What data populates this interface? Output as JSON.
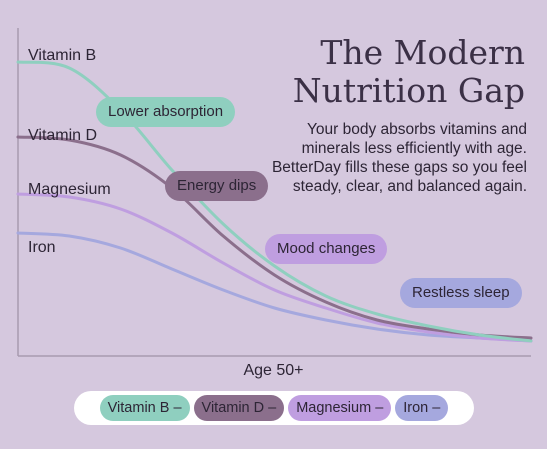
{
  "header": {
    "title_line1": "The Modern",
    "title_line2": "Nutrition Gap",
    "description": "Your body absorbs vitamins and minerals less efficiently with age. BetterDay fills these gaps so you feel steady, clear, and balanced again."
  },
  "colors": {
    "background": "#d5c8de",
    "vitamin_b": "#8fcfbf",
    "vitamin_d": "#8b6f8c",
    "magnesium": "#bf9ee0",
    "iron": "#a5a8de",
    "axis": "#a89aaf"
  },
  "annotations": [
    {
      "text": "Lower absorption",
      "color": "#8fcfbf"
    },
    {
      "text": "Energy dips",
      "color": "#8b6f8c"
    },
    {
      "text": "Mood changes",
      "color": "#bf9ee0"
    },
    {
      "text": "Restless sleep",
      "color": "#a5a8de"
    }
  ],
  "legend": [
    {
      "label": "Vitamin B –",
      "color": "#8fcfbf"
    },
    {
      "label": "Vitamin D –",
      "color": "#8b6f8c"
    },
    {
      "label": "Magnesium –",
      "color": "#bf9ee0"
    },
    {
      "label": "Iron –",
      "color": "#a5a8de"
    }
  ],
  "chart_data": {
    "type": "line",
    "title": "The Modern Nutrition Gap",
    "xlabel": "Age 50+",
    "ylabel": "",
    "grid": false,
    "legend_position": "bottom",
    "x": [
      0,
      0.1,
      0.2,
      0.3,
      0.4,
      0.5,
      0.6,
      0.7,
      0.8,
      0.9,
      1.0
    ],
    "ylim": [
      0,
      1
    ],
    "series": [
      {
        "name": "Vitamin B",
        "values": [
          0.96,
          0.94,
          0.8,
          0.6,
          0.42,
          0.28,
          0.18,
          0.12,
          0.08,
          0.05,
          0.03
        ]
      },
      {
        "name": "Vitamin D",
        "values": [
          0.71,
          0.7,
          0.65,
          0.54,
          0.38,
          0.25,
          0.16,
          0.1,
          0.07,
          0.05,
          0.04
        ]
      },
      {
        "name": "Magnesium",
        "values": [
          0.52,
          0.51,
          0.47,
          0.39,
          0.29,
          0.2,
          0.14,
          0.09,
          0.06,
          0.04,
          0.03
        ]
      },
      {
        "name": "Iron",
        "values": [
          0.39,
          0.38,
          0.34,
          0.27,
          0.2,
          0.14,
          0.1,
          0.07,
          0.05,
          0.04,
          0.03
        ]
      }
    ],
    "series_labels": [
      "Vitamin B",
      "Vitamin D",
      "Magnesium",
      "Iron"
    ]
  }
}
